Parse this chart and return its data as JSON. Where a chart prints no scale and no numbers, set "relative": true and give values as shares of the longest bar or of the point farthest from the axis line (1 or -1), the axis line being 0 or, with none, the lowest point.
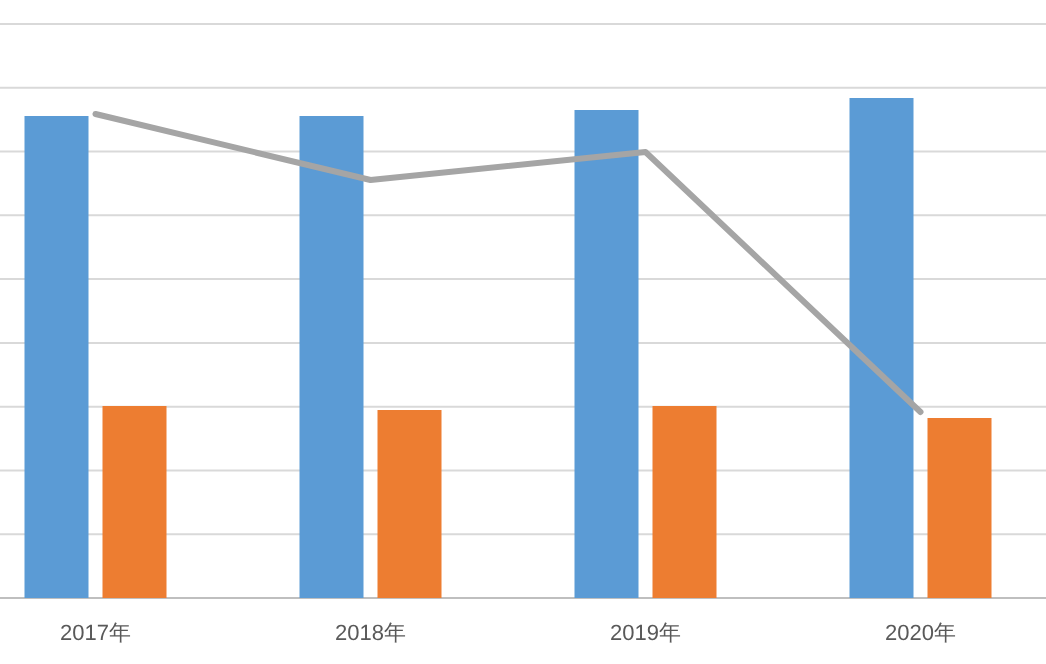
{
  "chart_data": {
    "type": "bar",
    "relative": true,
    "grid": "y",
    "categories": [
      "2017年",
      "2018年",
      "2019年",
      "2020年"
    ],
    "series": [
      {
        "color": "#5b9bd5",
        "values": [
          0.964,
          0.964,
          0.976,
          1
        ]
      },
      {
        "color": "#ed7d31",
        "values": [
          0.384,
          0.376,
          0.384,
          0.36
        ]
      },
      {
        "type": "line",
        "color": "#a5a5a5",
        "values": [
          0.968,
          0.836,
          0.892,
          0.372
        ]
      }
    ]
  }
}
